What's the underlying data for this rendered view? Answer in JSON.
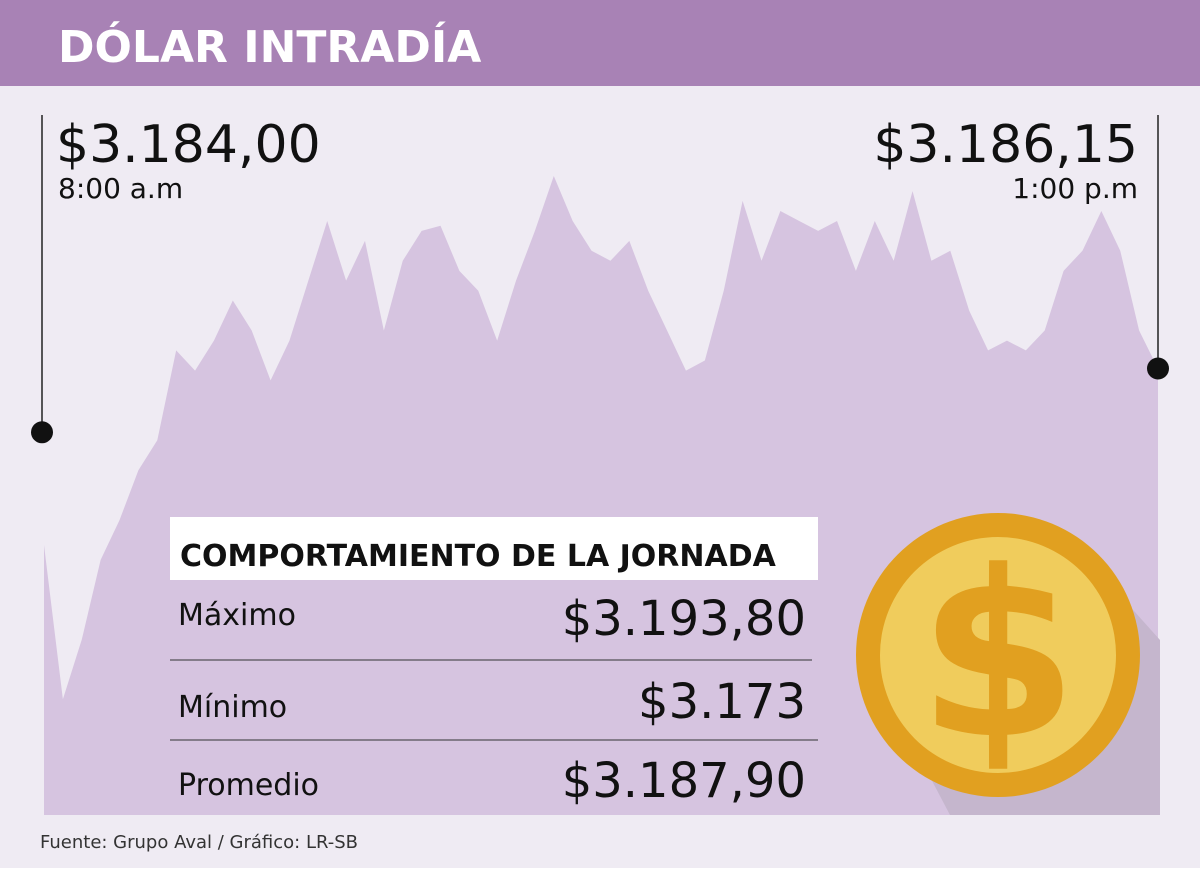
{
  "chart_data": {
    "type": "area",
    "title": "DÓLAR INTRADÍA",
    "color": "#d6c4e0",
    "ylim": [
      3171.1,
      3195.2
    ],
    "values": [
      3180.2,
      3175.0,
      3177.01,
      3179.7,
      3181.04,
      3182.72,
      3183.73,
      3186.76,
      3186.08,
      3187.09,
      3188.44,
      3187.43,
      3185.75,
      3187.09,
      3189.11,
      3191.12,
      3189.11,
      3190.45,
      3187.43,
      3189.78,
      3190.79,
      3190.96,
      3189.44,
      3188.77,
      3187.09,
      3189.11,
      3190.79,
      3192.64,
      3191.12,
      3190.12,
      3189.78,
      3190.45,
      3188.77,
      3187.43,
      3186.08,
      3186.42,
      3188.77,
      3191.8,
      3189.78,
      3191.46,
      3191.12,
      3190.79,
      3191.12,
      3189.44,
      3191.12,
      3189.78,
      3192.13,
      3189.78,
      3190.12,
      3188.1,
      3186.76,
      3187.09,
      3186.76,
      3187.43,
      3189.44,
      3190.12,
      3191.46,
      3190.12,
      3187.43,
      3186.15
    ],
    "start": {
      "value": 3184.0,
      "label": "$3.184,00",
      "time": "8:00 a.m"
    },
    "end": {
      "value": 3186.15,
      "label": "$3.186,15",
      "time": "1:00 p.m"
    },
    "source": "Fuente: Grupo Aval / Gráfico: LR-SB"
  },
  "summary": {
    "title": "COMPORTAMIENTO DE LA JORNADA",
    "rows": [
      [
        "Máximo",
        "$3.193,80"
      ],
      [
        "Mínimo",
        "$3.173"
      ],
      [
        "Promedio",
        "$3.187,90"
      ]
    ]
  }
}
